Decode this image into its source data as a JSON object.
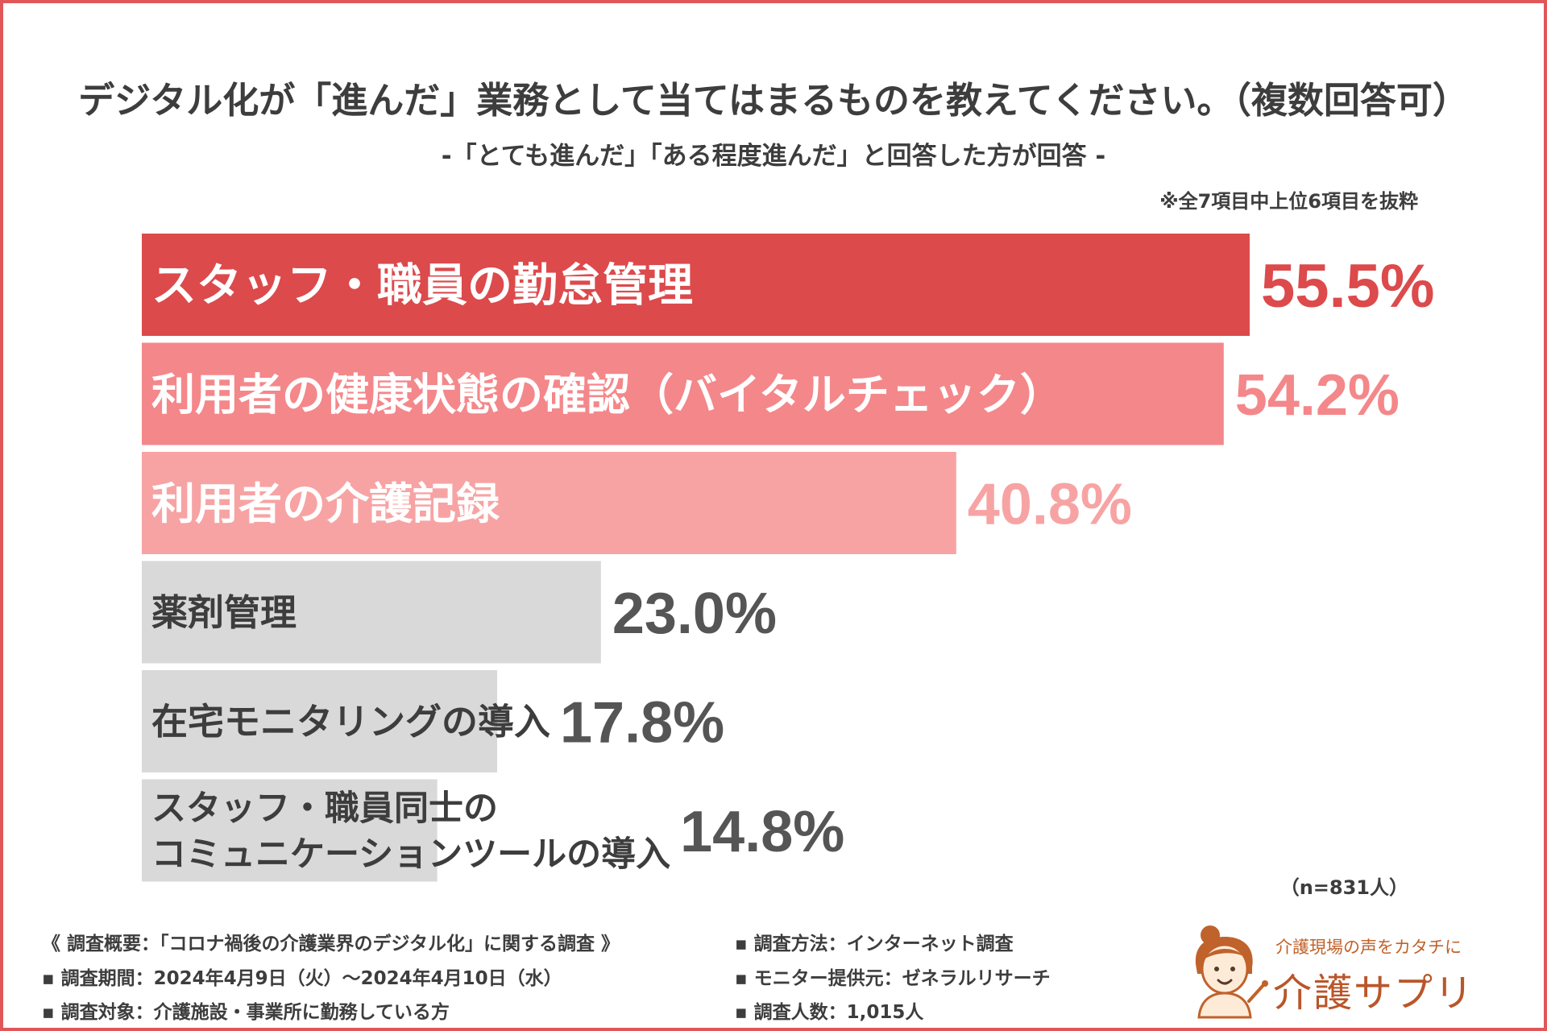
{
  "chart_data": {
    "type": "bar",
    "orientation": "horizontal",
    "title": "デジタル化が「進んだ」業務として当てはまるものを教えてください。（複数回答可）",
    "subtitle": "-「とても進んだ」「ある程度進んだ」と回答した方が回答 -",
    "note": "※全7項目中上位6項目を抜粋",
    "categories": [
      "スタッフ・職員の勤怠管理",
      "利用者の健康状態の確認（バイタルチェック）",
      "利用者の介護記録",
      "薬剤管理",
      "在宅モニタリングの導入",
      "スタッフ・職員同士のコミュニケーションツールの導入"
    ],
    "category_lines": [
      [
        "スタッフ・職員の勤怠管理"
      ],
      [
        "利用者の健康状態の確認（バイタルチェック）"
      ],
      [
        "利用者の介護記録"
      ],
      [
        "薬剤管理"
      ],
      [
        "在宅モニタリングの導入"
      ],
      [
        "スタッフ・職員同士の",
        "コミュニケーションツールの導入"
      ]
    ],
    "values": [
      55.5,
      54.2,
      40.8,
      23.0,
      17.8,
      14.8
    ],
    "value_labels": [
      "55.5%",
      "54.2%",
      "40.8%",
      "23.0%",
      "17.8%",
      "14.8%"
    ],
    "bar_colors": [
      "#dc4a4c",
      "#f4878a",
      "#f7a3a4",
      "#d9d9d9",
      "#d9d9d9",
      "#d9d9d9"
    ],
    "label_colors": [
      "#ffffff",
      "#ffffff",
      "#ffffff",
      "#3d3d3d",
      "#3d3d3d",
      "#3d3d3d"
    ],
    "value_colors": [
      "#dc4a4c",
      "#f4878a",
      "#f7a3a4",
      "#555555",
      "#555555",
      "#555555"
    ],
    "xlim": [
      0,
      55.5
    ]
  },
  "sample_size": "（n=831人）",
  "survey": {
    "left": [
      "《 調査概要：「コロナ禍後の介護業界のデジタル化」に関する調査 》",
      "▪ 調査期間：2024年4月9日（火）〜2024年4月10日（水）",
      "▪ 調査対象：介護施設・事業所に勤務している方"
    ],
    "right": [
      "▪ 調査方法：インターネット調査",
      "▪ モニター提供元：ゼネラルリサーチ",
      "▪ 調査人数：1,015人"
    ]
  },
  "logo": {
    "tagline": "介護現場の声をカタチに",
    "name": "介護サプリ"
  }
}
